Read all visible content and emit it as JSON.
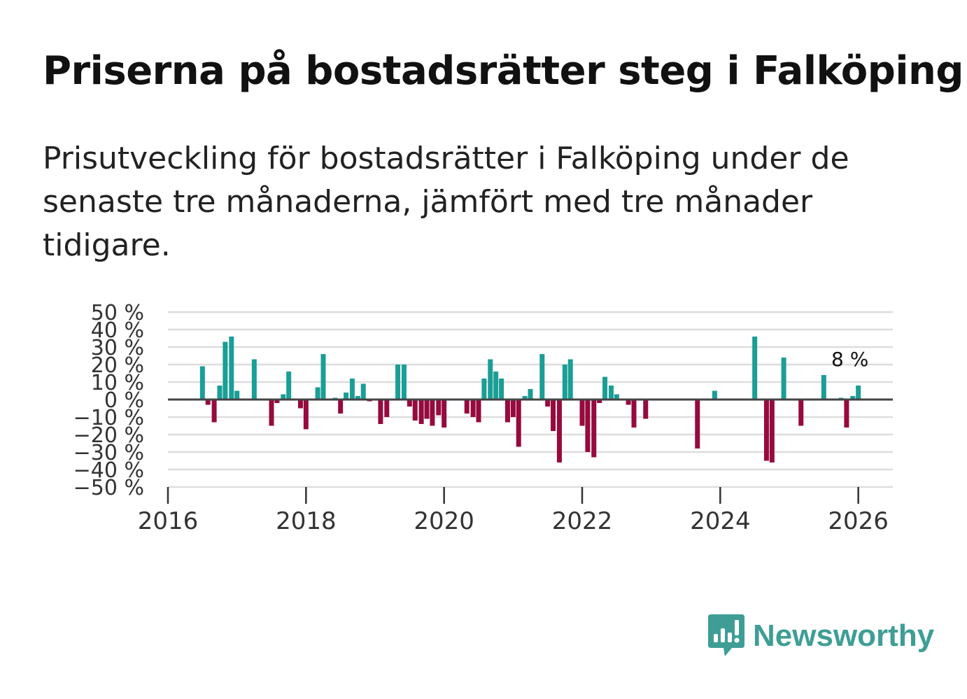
{
  "chart_data": {
    "type": "bar",
    "title": "Priserna på bostadsrätter steg i Falköping",
    "subtitle": "Prisutveckling för bostadsrätter i Falköping under de senaste tre månaderna, jämfört med tre månader tidigare.",
    "xlabel": "",
    "ylabel": "",
    "ylim": [
      -50,
      50
    ],
    "xlim": [
      2016.0,
      2026.5
    ],
    "y_ticks": [
      {
        "value": 50,
        "label": "50 %"
      },
      {
        "value": 40,
        "label": "40 %"
      },
      {
        "value": 30,
        "label": "30 %"
      },
      {
        "value": 20,
        "label": "20 %"
      },
      {
        "value": 10,
        "label": "10 %"
      },
      {
        "value": 0,
        "label": "0 %"
      },
      {
        "value": -10,
        "label": "−10 %"
      },
      {
        "value": -20,
        "label": "−20 %"
      },
      {
        "value": -30,
        "label": "−30 %"
      },
      {
        "value": -40,
        "label": "−40 %"
      },
      {
        "value": -50,
        "label": "−50 %"
      }
    ],
    "x_ticks": [
      {
        "value": 2016,
        "label": "2016"
      },
      {
        "value": 2018,
        "label": "2018"
      },
      {
        "value": 2020,
        "label": "2020"
      },
      {
        "value": 2022,
        "label": "2022"
      },
      {
        "value": 2024,
        "label": "2024"
      },
      {
        "value": 2026,
        "label": "2026"
      }
    ],
    "colors": {
      "positive": "#1a9e96",
      "negative": "#960a3d",
      "grid": "#dddddd",
      "zero": "#444444"
    },
    "annotation": {
      "text": "8 %",
      "x": 2026.0,
      "y": 8
    },
    "points": [
      {
        "x": 2016.5,
        "y": 19
      },
      {
        "x": 2016.58,
        "y": -3
      },
      {
        "x": 2016.67,
        "y": -13
      },
      {
        "x": 2016.75,
        "y": 8
      },
      {
        "x": 2016.83,
        "y": 33
      },
      {
        "x": 2016.92,
        "y": 36
      },
      {
        "x": 2017.0,
        "y": 5
      },
      {
        "x": 2017.25,
        "y": 23
      },
      {
        "x": 2017.5,
        "y": -15
      },
      {
        "x": 2017.58,
        "y": -2
      },
      {
        "x": 2017.67,
        "y": 3
      },
      {
        "x": 2017.75,
        "y": 16
      },
      {
        "x": 2017.92,
        "y": -5
      },
      {
        "x": 2018.0,
        "y": -17
      },
      {
        "x": 2018.17,
        "y": 7
      },
      {
        "x": 2018.25,
        "y": 26
      },
      {
        "x": 2018.42,
        "y": 1
      },
      {
        "x": 2018.5,
        "y": -8
      },
      {
        "x": 2018.58,
        "y": 4
      },
      {
        "x": 2018.67,
        "y": 12
      },
      {
        "x": 2018.75,
        "y": 2
      },
      {
        "x": 2018.83,
        "y": 9
      },
      {
        "x": 2018.92,
        "y": -1
      },
      {
        "x": 2019.08,
        "y": -14
      },
      {
        "x": 2019.17,
        "y": -10
      },
      {
        "x": 2019.33,
        "y": 20
      },
      {
        "x": 2019.42,
        "y": 20
      },
      {
        "x": 2019.5,
        "y": -4
      },
      {
        "x": 2019.58,
        "y": -12
      },
      {
        "x": 2019.67,
        "y": -14
      },
      {
        "x": 2019.75,
        "y": -11
      },
      {
        "x": 2019.83,
        "y": -15
      },
      {
        "x": 2019.92,
        "y": -9
      },
      {
        "x": 2020.0,
        "y": -16
      },
      {
        "x": 2020.33,
        "y": -8
      },
      {
        "x": 2020.42,
        "y": -10
      },
      {
        "x": 2020.5,
        "y": -13
      },
      {
        "x": 2020.58,
        "y": 12
      },
      {
        "x": 2020.67,
        "y": 23
      },
      {
        "x": 2020.75,
        "y": 16
      },
      {
        "x": 2020.83,
        "y": 12
      },
      {
        "x": 2020.92,
        "y": -13
      },
      {
        "x": 2021.0,
        "y": -10
      },
      {
        "x": 2021.08,
        "y": -27
      },
      {
        "x": 2021.17,
        "y": 2
      },
      {
        "x": 2021.25,
        "y": 6
      },
      {
        "x": 2021.42,
        "y": 26
      },
      {
        "x": 2021.5,
        "y": -4
      },
      {
        "x": 2021.58,
        "y": -18
      },
      {
        "x": 2021.67,
        "y": -36
      },
      {
        "x": 2021.75,
        "y": 20
      },
      {
        "x": 2021.83,
        "y": 23
      },
      {
        "x": 2022.0,
        "y": -15
      },
      {
        "x": 2022.08,
        "y": -30
      },
      {
        "x": 2022.17,
        "y": -33
      },
      {
        "x": 2022.25,
        "y": -2
      },
      {
        "x": 2022.33,
        "y": 13
      },
      {
        "x": 2022.42,
        "y": 8
      },
      {
        "x": 2022.5,
        "y": 3
      },
      {
        "x": 2022.67,
        "y": -3
      },
      {
        "x": 2022.75,
        "y": -16
      },
      {
        "x": 2022.92,
        "y": -11
      },
      {
        "x": 2023.67,
        "y": -28
      },
      {
        "x": 2023.92,
        "y": 5
      },
      {
        "x": 2024.5,
        "y": 36
      },
      {
        "x": 2024.67,
        "y": -35
      },
      {
        "x": 2024.75,
        "y": -36
      },
      {
        "x": 2024.92,
        "y": 24
      },
      {
        "x": 2025.17,
        "y": -15
      },
      {
        "x": 2025.5,
        "y": 14
      },
      {
        "x": 2025.75,
        "y": 1
      },
      {
        "x": 2025.83,
        "y": -16
      },
      {
        "x": 2025.92,
        "y": 2
      },
      {
        "x": 2026.0,
        "y": 8
      }
    ]
  },
  "brand": {
    "name": "Newsworthy",
    "icon": "newsworthy-logo-icon",
    "color": "#3e9e96"
  }
}
